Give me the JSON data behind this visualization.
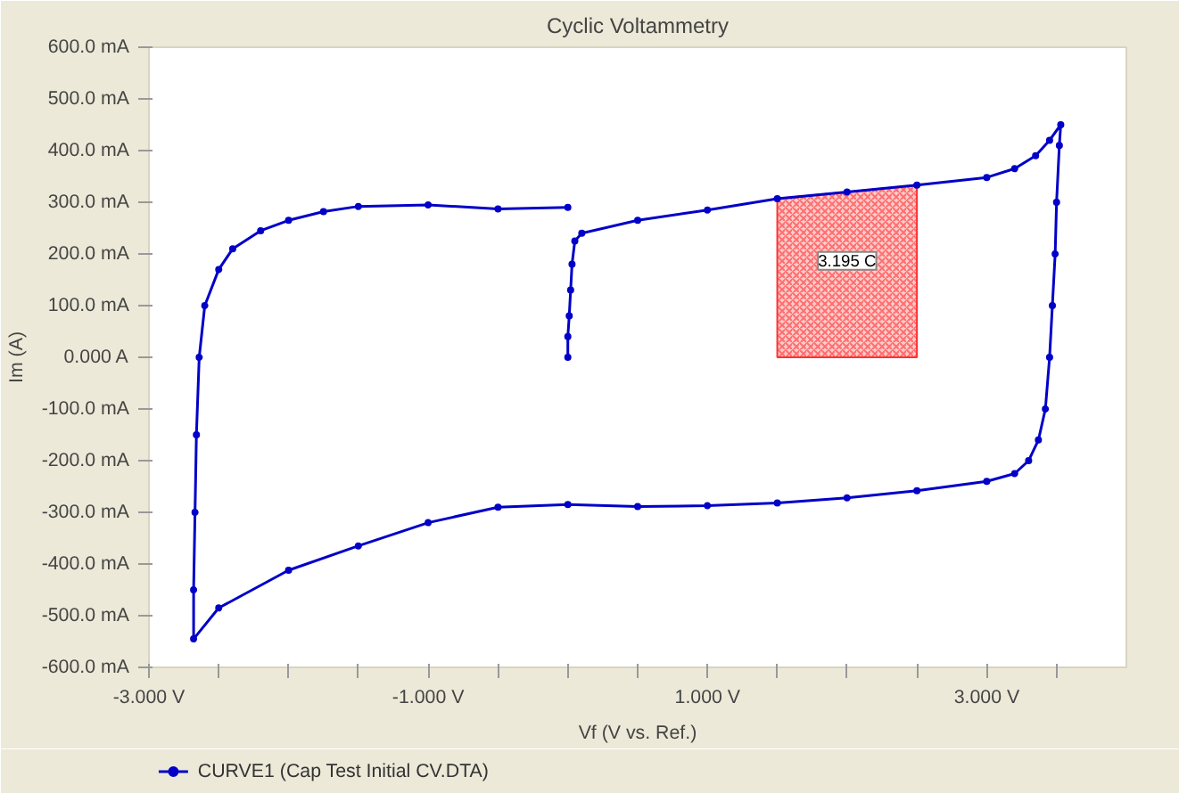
{
  "chart_data": {
    "type": "line",
    "title": "Cyclic Voltammetry",
    "xlabel": "Vf (V vs. Ref.)",
    "ylabel": "Im (A)",
    "xlim": [
      -3,
      4
    ],
    "ylim": [
      -600,
      600
    ],
    "xticks": [
      {
        "value": -3,
        "label": "-3.000 V"
      },
      {
        "value": -2.5,
        "label": null
      },
      {
        "value": -2,
        "label": null
      },
      {
        "value": -1.5,
        "label": null
      },
      {
        "value": -1,
        "label": "-1.000 V"
      },
      {
        "value": -0.5,
        "label": null
      },
      {
        "value": 0,
        "label": null
      },
      {
        "value": 0.5,
        "label": null
      },
      {
        "value": 1,
        "label": "1.000 V"
      },
      {
        "value": 1.5,
        "label": null
      },
      {
        "value": 2,
        "label": null
      },
      {
        "value": 2.5,
        "label": null
      },
      {
        "value": 3,
        "label": "3.000 V"
      },
      {
        "value": 3.5,
        "label": null
      }
    ],
    "yticks": [
      {
        "value": 600,
        "label": "600.0 mA"
      },
      {
        "value": 500,
        "label": "500.0 mA"
      },
      {
        "value": 400,
        "label": "400.0 mA"
      },
      {
        "value": 300,
        "label": "300.0 mA"
      },
      {
        "value": 200,
        "label": "200.0 mA"
      },
      {
        "value": 100,
        "label": "100.0 mA"
      },
      {
        "value": 0,
        "label": "0.000 A"
      },
      {
        "value": -100,
        "label": "-100.0 mA"
      },
      {
        "value": -200,
        "label": "-200.0 mA"
      },
      {
        "value": -300,
        "label": "-300.0 mA"
      },
      {
        "value": -400,
        "label": "-400.0 mA"
      },
      {
        "value": -500,
        "label": "-500.0 mA"
      },
      {
        "value": -600,
        "label": "-600.0 mA"
      }
    ],
    "grid": false,
    "legend": "bottom",
    "marker": "circle",
    "line_style": "solid",
    "bands": [
      {
        "axis": "x",
        "from": 1.5,
        "to": 2.5,
        "label": "3.195 C",
        "color": "#ff3030"
      }
    ],
    "series": [
      {
        "name": "CURVE1 (Cap Test Initial CV.DTA)",
        "color": "#0000c8",
        "x": [
          0.0,
          0.0,
          0.01,
          0.02,
          0.03,
          0.05,
          0.1,
          0.5,
          1.0,
          1.5,
          2.0,
          2.5,
          3.0,
          3.2,
          3.35,
          3.45,
          3.53,
          3.52,
          3.5,
          3.49,
          3.47,
          3.45,
          3.42,
          3.37,
          3.3,
          3.2,
          3.0,
          2.5,
          2.0,
          1.5,
          1.0,
          0.5,
          0.0,
          -0.5,
          -1.0,
          -1.5,
          -2.0,
          -2.5,
          -2.68,
          -2.68,
          -2.67,
          -2.66,
          -2.64,
          -2.6,
          -2.5,
          -2.4,
          -2.2,
          -2.0,
          -1.75,
          -1.5,
          -1.0,
          -0.5,
          0.0
        ],
        "values": [
          0,
          40,
          80,
          130,
          180,
          225,
          240,
          265,
          285,
          307,
          320,
          333,
          348,
          365,
          390,
          420,
          450,
          410,
          300,
          200,
          100,
          0,
          -100,
          -160,
          -200,
          -225,
          -240,
          -258,
          -272,
          -282,
          -287,
          -289,
          -285,
          -290,
          -320,
          -365,
          -412,
          -485,
          -545,
          -450,
          -300,
          -150,
          0,
          100,
          170,
          210,
          245,
          265,
          282,
          292,
          295,
          287,
          290
        ]
      }
    ]
  }
}
